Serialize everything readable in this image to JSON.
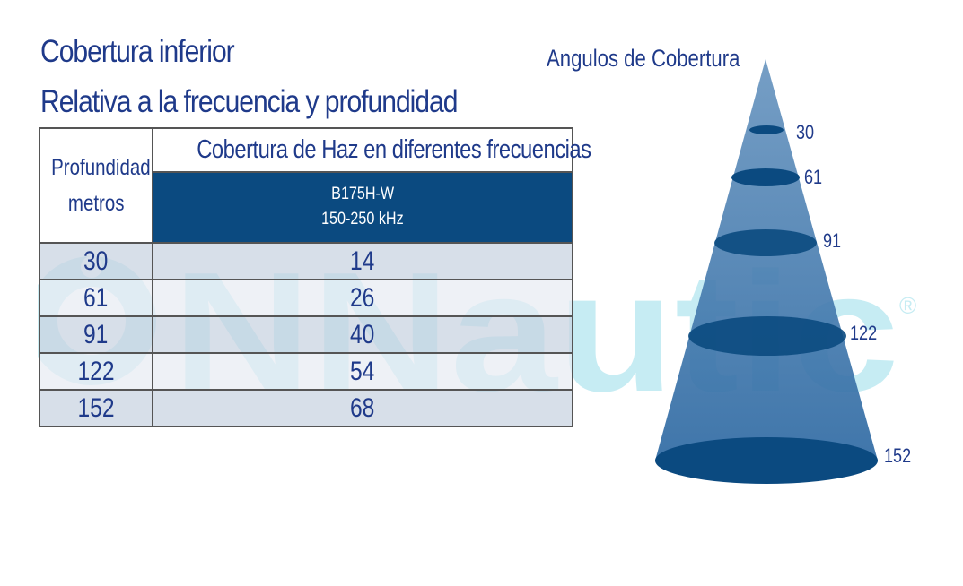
{
  "title_line1": "Cobertura inferior",
  "title_line2": "Relativa a la frecuencia y profundidad",
  "table": {
    "col_depth_header_line1": "Profundidad",
    "col_depth_header_line2": "metros",
    "col_coverage_header": "Cobertura de Haz en diferentes frecuencias",
    "model_line1": "B175H-W",
    "model_line2": "150-250 kHz",
    "rows": [
      {
        "depth": "30",
        "coverage": "14"
      },
      {
        "depth": "61",
        "coverage": "26"
      },
      {
        "depth": "91",
        "coverage": "40"
      },
      {
        "depth": "122",
        "coverage": "54"
      },
      {
        "depth": "152",
        "coverage": "68"
      }
    ]
  },
  "cone": {
    "title": "Angulos de Cobertura",
    "depth_labels": [
      "30",
      "61",
      "91",
      "122",
      "152"
    ]
  },
  "watermark": {
    "text": "NNautic",
    "registered": "®"
  },
  "colors": {
    "title_text": "#1f3a8a",
    "model_header_bg": "#0b4a80",
    "cone_light": "#5a88b4",
    "cone_dark": "#0b4a80",
    "watermark": "#bfeaf2"
  }
}
